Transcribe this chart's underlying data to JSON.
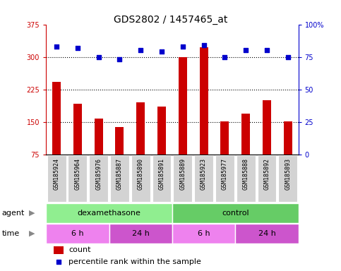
{
  "title": "GDS2802 / 1457465_at",
  "samples": [
    "GSM185924",
    "GSM185964",
    "GSM185976",
    "GSM185887",
    "GSM185890",
    "GSM185891",
    "GSM185889",
    "GSM185923",
    "GSM185977",
    "GSM185888",
    "GSM185892",
    "GSM185893"
  ],
  "counts": [
    242,
    192,
    158,
    138,
    195,
    186,
    300,
    322,
    152,
    170,
    200,
    152
  ],
  "percentile": [
    83,
    82,
    75,
    73,
    80,
    79,
    83,
    84,
    75,
    80,
    80,
    75
  ],
  "ylim_left": [
    75,
    375
  ],
  "ylim_right": [
    0,
    100
  ],
  "yticks_left": [
    75,
    150,
    225,
    300,
    375
  ],
  "yticks_right": [
    0,
    25,
    50,
    75,
    100
  ],
  "bar_color": "#cc0000",
  "dot_color": "#0000cc",
  "bg_color": "#ffffff",
  "xticklabel_bg": "#d3d3d3",
  "agent_groups": [
    {
      "label": "dexamethasone",
      "start": 0,
      "end": 6,
      "color": "#90ee90"
    },
    {
      "label": "control",
      "start": 6,
      "end": 12,
      "color": "#66cc66"
    }
  ],
  "time_groups": [
    {
      "label": "6 h",
      "start": 0,
      "end": 3,
      "color": "#ee82ee"
    },
    {
      "label": "24 h",
      "start": 3,
      "end": 6,
      "color": "#cc55cc"
    },
    {
      "label": "6 h",
      "start": 6,
      "end": 9,
      "color": "#ee82ee"
    },
    {
      "label": "24 h",
      "start": 9,
      "end": 12,
      "color": "#cc55cc"
    }
  ],
  "left_label_color": "#cc0000",
  "right_label_color": "#0000cc",
  "bar_width": 0.4,
  "legend_count_color": "#cc0000",
  "legend_dot_color": "#0000cc"
}
